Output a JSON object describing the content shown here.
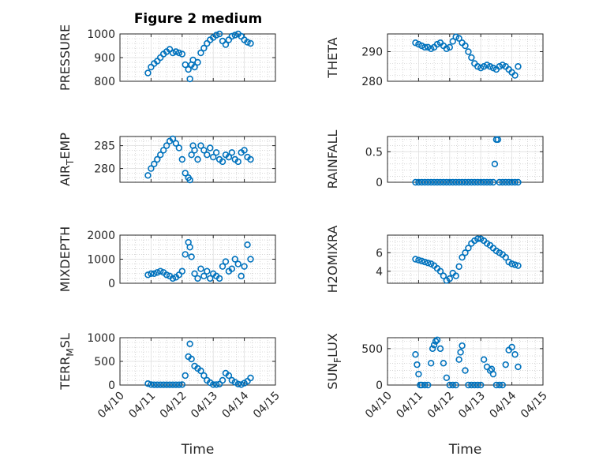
{
  "figure": {
    "title": "Figure 2 medium"
  },
  "chart_data": [
    {
      "type": "scatter",
      "ylabel": "PRESSURE",
      "ylabel_sub": "",
      "ylim": [
        800,
        1000
      ],
      "yticks": [
        800,
        900,
        1000
      ],
      "xlim": [
        "04/10",
        "04/15"
      ],
      "xticks": [
        "04/10",
        "04/11",
        "04/12",
        "04/13",
        "04/14",
        "04/15"
      ],
      "show_xticklabels": false,
      "xlabel": "",
      "x": [
        0.9,
        1.0,
        1.1,
        1.2,
        1.3,
        1.4,
        1.5,
        1.6,
        1.7,
        1.8,
        1.9,
        2.0,
        2.1,
        2.2,
        2.25,
        2.3,
        2.35,
        2.4,
        2.5,
        2.6,
        2.7,
        2.8,
        2.9,
        3.0,
        3.1,
        3.2,
        3.3,
        3.4,
        3.5,
        3.6,
        3.7,
        3.8,
        3.9,
        4.0,
        4.1,
        4.2
      ],
      "y": [
        835,
        860,
        875,
        885,
        900,
        915,
        925,
        935,
        920,
        925,
        920,
        915,
        870,
        850,
        810,
        870,
        890,
        860,
        880,
        920,
        940,
        960,
        975,
        985,
        995,
        1000,
        970,
        955,
        975,
        990,
        995,
        1000,
        990,
        975,
        965,
        960
      ]
    },
    {
      "type": "scatter",
      "ylabel": "THETA",
      "ylabel_sub": "",
      "ylim": [
        280,
        296
      ],
      "yticks": [
        280,
        290
      ],
      "xlim": [
        "04/10",
        "04/15"
      ],
      "xticks": [
        "04/10",
        "04/11",
        "04/12",
        "04/13",
        "04/14",
        "04/15"
      ],
      "show_xticklabels": false,
      "xlabel": "",
      "x": [
        0.9,
        1.0,
        1.1,
        1.2,
        1.3,
        1.4,
        1.5,
        1.6,
        1.7,
        1.8,
        1.9,
        2.0,
        2.1,
        2.2,
        2.3,
        2.4,
        2.5,
        2.6,
        2.7,
        2.8,
        2.9,
        3.0,
        3.1,
        3.2,
        3.3,
        3.4,
        3.5,
        3.6,
        3.7,
        3.8,
        3.9,
        4.0,
        4.1,
        4.2
      ],
      "y": [
        293,
        292.5,
        292,
        291.5,
        291.5,
        291,
        291.5,
        292.5,
        293,
        292,
        291,
        291.5,
        293.5,
        295,
        294.5,
        293,
        292,
        290,
        288,
        286,
        285,
        284.5,
        285,
        285.5,
        285,
        284.5,
        284,
        285,
        285.5,
        285,
        284,
        283,
        282,
        285
      ]
    },
    {
      "type": "scatter",
      "ylabel": "AIR",
      "ylabel_sub": "T",
      "ylabel_rest": "EMP",
      "ylim": [
        277,
        287
      ],
      "yticks": [
        280,
        285
      ],
      "xlim": [
        "04/10",
        "04/15"
      ],
      "xticks": [
        "04/10",
        "04/11",
        "04/12",
        "04/13",
        "04/14",
        "04/15"
      ],
      "show_xticklabels": false,
      "xlabel": "",
      "x": [
        0.9,
        1.0,
        1.1,
        1.2,
        1.3,
        1.4,
        1.5,
        1.6,
        1.7,
        1.8,
        1.9,
        2.0,
        2.1,
        2.2,
        2.25,
        2.3,
        2.35,
        2.4,
        2.5,
        2.6,
        2.7,
        2.8,
        2.9,
        3.0,
        3.1,
        3.2,
        3.3,
        3.4,
        3.5,
        3.6,
        3.7,
        3.8,
        3.9,
        4.0,
        4.1,
        4.2
      ],
      "y": [
        278.5,
        280,
        281,
        282,
        283,
        284,
        285,
        286,
        286.5,
        285.5,
        284.5,
        282,
        279,
        278,
        277.5,
        283,
        285,
        284,
        282,
        285,
        284,
        283,
        284.5,
        282.5,
        283.5,
        282,
        281.5,
        283,
        282.5,
        283.5,
        282,
        281.5,
        283.5,
        284,
        282.5,
        282
      ]
    },
    {
      "type": "scatter",
      "ylabel": "RAINFALL",
      "ylabel_sub": "",
      "ylim": [
        0,
        0.75
      ],
      "yticks": [
        0,
        0.5
      ],
      "xlim": [
        "04/10",
        "04/15"
      ],
      "xticks": [
        "04/10",
        "04/11",
        "04/12",
        "04/13",
        "04/14",
        "04/15"
      ],
      "show_xticklabels": false,
      "xlabel": "",
      "x": [
        0.9,
        1.0,
        1.1,
        1.2,
        1.3,
        1.4,
        1.5,
        1.6,
        1.7,
        1.8,
        1.9,
        2.0,
        2.1,
        2.2,
        2.3,
        2.4,
        2.5,
        2.6,
        2.7,
        2.8,
        2.9,
        3.0,
        3.1,
        3.2,
        3.3,
        3.4,
        3.45,
        3.5,
        3.55,
        3.6,
        3.7,
        3.8,
        3.9,
        4.0,
        4.1,
        4.2
      ],
      "y": [
        0,
        0,
        0,
        0,
        0,
        0,
        0,
        0,
        0,
        0,
        0,
        0,
        0,
        0,
        0,
        0,
        0,
        0,
        0,
        0,
        0,
        0,
        0,
        0,
        0,
        0,
        0.3,
        0.7,
        0.7,
        0,
        0,
        0,
        0,
        0,
        0,
        0
      ]
    },
    {
      "type": "scatter",
      "ylabel": "MIXDEPTH",
      "ylabel_sub": "",
      "ylim": [
        0,
        2000
      ],
      "yticks": [
        0,
        1000,
        2000
      ],
      "xlim": [
        "04/10",
        "04/15"
      ],
      "xticks": [
        "04/10",
        "04/11",
        "04/12",
        "04/13",
        "04/14",
        "04/15"
      ],
      "show_xticklabels": false,
      "xlabel": "",
      "x": [
        0.9,
        1.0,
        1.1,
        1.2,
        1.3,
        1.4,
        1.5,
        1.6,
        1.7,
        1.8,
        1.9,
        2.0,
        2.1,
        2.2,
        2.25,
        2.3,
        2.4,
        2.5,
        2.6,
        2.7,
        2.8,
        2.9,
        3.0,
        3.1,
        3.2,
        3.3,
        3.4,
        3.5,
        3.6,
        3.7,
        3.8,
        3.9,
        4.0,
        4.1,
        4.2
      ],
      "y": [
        350,
        400,
        400,
        450,
        500,
        450,
        350,
        300,
        200,
        250,
        350,
        500,
        1200,
        1700,
        1500,
        1100,
        400,
        200,
        600,
        300,
        500,
        200,
        400,
        300,
        200,
        700,
        900,
        500,
        600,
        1000,
        800,
        300,
        700,
        1600,
        1000
      ]
    },
    {
      "type": "scatter",
      "ylabel": "H2OMIXRA",
      "ylabel_sub": "",
      "ylim": [
        2.7,
        7.9
      ],
      "yticks": [
        4,
        6
      ],
      "xlim": [
        "04/10",
        "04/15"
      ],
      "xticks": [
        "04/10",
        "04/11",
        "04/12",
        "04/13",
        "04/14",
        "04/15"
      ],
      "show_xticklabels": false,
      "xlabel": "",
      "x": [
        0.9,
        1.0,
        1.1,
        1.2,
        1.3,
        1.4,
        1.5,
        1.6,
        1.7,
        1.8,
        1.9,
        2.0,
        2.1,
        2.2,
        2.3,
        2.4,
        2.5,
        2.6,
        2.7,
        2.8,
        2.9,
        3.0,
        3.1,
        3.2,
        3.3,
        3.4,
        3.5,
        3.6,
        3.7,
        3.8,
        3.9,
        4.0,
        4.1,
        4.2
      ],
      "y": [
        5.3,
        5.2,
        5.1,
        5.0,
        4.9,
        4.8,
        4.6,
        4.3,
        4.0,
        3.5,
        3.0,
        3.2,
        3.8,
        3.5,
        4.5,
        5.5,
        6.0,
        6.5,
        7.0,
        7.3,
        7.5,
        7.5,
        7.3,
        7.0,
        6.8,
        6.5,
        6.2,
        6.0,
        5.8,
        5.5,
        5.0,
        4.8,
        4.7,
        4.6
      ]
    },
    {
      "type": "scatter",
      "ylabel": "TERR",
      "ylabel_sub": "M",
      "ylabel_rest": "SL",
      "ylim": [
        0,
        1000
      ],
      "yticks": [
        0,
        500,
        1000
      ],
      "xlim": [
        "04/10",
        "04/15"
      ],
      "xticks": [
        "04/10",
        "04/11",
        "04/12",
        "04/13",
        "04/14",
        "04/15"
      ],
      "show_xticklabels": true,
      "xlabel": "Time",
      "x": [
        0.9,
        1.0,
        1.1,
        1.2,
        1.3,
        1.4,
        1.5,
        1.6,
        1.7,
        1.8,
        1.9,
        2.0,
        2.1,
        2.2,
        2.25,
        2.3,
        2.4,
        2.5,
        2.6,
        2.7,
        2.8,
        2.9,
        3.0,
        3.1,
        3.2,
        3.3,
        3.4,
        3.5,
        3.6,
        3.7,
        3.8,
        3.9,
        4.0,
        4.1,
        4.2
      ],
      "y": [
        30,
        10,
        5,
        5,
        5,
        5,
        5,
        5,
        5,
        5,
        5,
        10,
        200,
        600,
        870,
        550,
        400,
        350,
        300,
        200,
        100,
        50,
        10,
        10,
        20,
        100,
        250,
        200,
        100,
        60,
        20,
        10,
        40,
        80,
        150
      ]
    },
    {
      "type": "scatter",
      "ylabel": "SUN",
      "ylabel_sub": "F",
      "ylabel_rest": "LUX",
      "ylim": [
        0,
        650
      ],
      "yticks": [
        0,
        500
      ],
      "xlim": [
        "04/10",
        "04/15"
      ],
      "xticks": [
        "04/10",
        "04/11",
        "04/12",
        "04/13",
        "04/14",
        "04/15"
      ],
      "show_xticklabels": true,
      "xlabel": "Time",
      "x": [
        0.9,
        0.95,
        1.0,
        1.05,
        1.1,
        1.2,
        1.3,
        1.4,
        1.45,
        1.5,
        1.55,
        1.6,
        1.7,
        1.8,
        1.9,
        2.0,
        2.1,
        2.2,
        2.3,
        2.35,
        2.4,
        2.5,
        2.6,
        2.7,
        2.8,
        2.9,
        3.0,
        3.1,
        3.2,
        3.3,
        3.35,
        3.4,
        3.5,
        3.6,
        3.7,
        3.8,
        3.9,
        4.0,
        4.1,
        4.2
      ],
      "y": [
        420,
        280,
        150,
        0,
        0,
        0,
        0,
        300,
        500,
        550,
        600,
        620,
        500,
        300,
        100,
        0,
        0,
        0,
        350,
        450,
        540,
        200,
        0,
        0,
        0,
        0,
        0,
        350,
        250,
        200,
        220,
        150,
        0,
        0,
        0,
        280,
        480,
        520,
        420,
        250
      ]
    }
  ]
}
